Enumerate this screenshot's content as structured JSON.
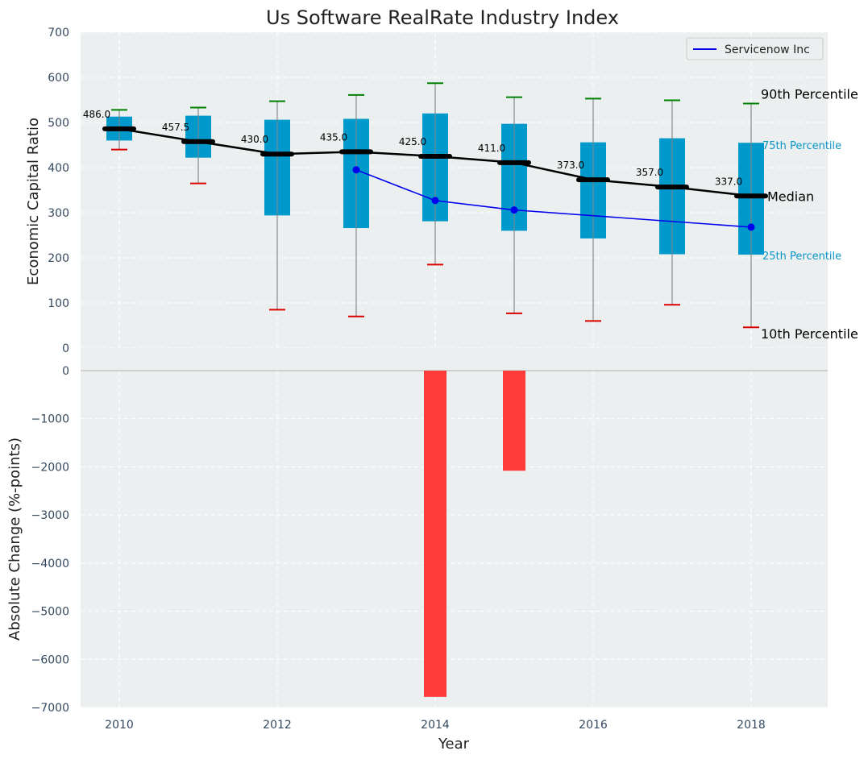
{
  "chart_data": [
    {
      "type": "box",
      "title": "Us Software RealRate Industry Index",
      "ylabel": "Economic Capital Ratio",
      "ylim": [
        0,
        700
      ],
      "yticks": [
        0,
        100,
        200,
        300,
        400,
        500,
        600,
        700
      ],
      "years": [
        2010,
        2011,
        2012,
        2013,
        2014,
        2015,
        2016,
        2017,
        2018
      ],
      "p10": [
        440,
        365,
        85,
        70,
        185,
        77,
        60,
        96,
        46
      ],
      "q1": [
        460,
        422,
        294,
        266,
        281,
        260,
        243,
        208,
        207
      ],
      "median": [
        486.0,
        457.5,
        430.0,
        435.0,
        425.0,
        411.0,
        373.0,
        357.0,
        337.0
      ],
      "q3": [
        513,
        515,
        506,
        508,
        520,
        497,
        456,
        465,
        455
      ],
      "p90": [
        528,
        533,
        547,
        561,
        587,
        556,
        553,
        549,
        542
      ],
      "median_labels": [
        "486.0",
        "457.5",
        "430.0",
        "435.0",
        "425.0",
        "411.0",
        "373.0",
        "357.0",
        "337.0"
      ],
      "series": [
        {
          "name": "Servicenow Inc",
          "color": "#0000ee",
          "x": [
            2013,
            2014,
            2015,
            2018
          ],
          "values": [
            395,
            327,
            306,
            268
          ]
        }
      ],
      "legend": {
        "label": "Servicenow Inc",
        "position": "top-right"
      },
      "annotations": {
        "p90": "90th Percentile",
        "p75": "75th Percentile",
        "median": "Median",
        "p25": "25th Percentile",
        "p10": "10th Percentile"
      },
      "colors": {
        "box": "#0099cc",
        "median": "#000000",
        "whisker": "#888888",
        "cap_high": "#008000",
        "cap_low": "#dd0000",
        "background": "#ebeff0"
      }
    },
    {
      "type": "bar",
      "ylabel": "Absolute Change (%-points)",
      "xlabel": "Year",
      "ylim": [
        -7000,
        0
      ],
      "yticks": [
        0,
        -1000,
        -2000,
        -3000,
        -4000,
        -5000,
        -6000,
        -7000
      ],
      "ytick_labels": [
        "0",
        "−1000",
        "−2000",
        "−3000",
        "−4000",
        "−5000",
        "−6000",
        "−7000"
      ],
      "xticks": [
        2010,
        2012,
        2014,
        2016,
        2018
      ],
      "xlim": [
        2009.5,
        2019
      ],
      "bars": [
        {
          "year": 2014,
          "value": -6780
        },
        {
          "year": 2015,
          "value": -2080
        }
      ],
      "color": "#ff3c3c"
    }
  ]
}
